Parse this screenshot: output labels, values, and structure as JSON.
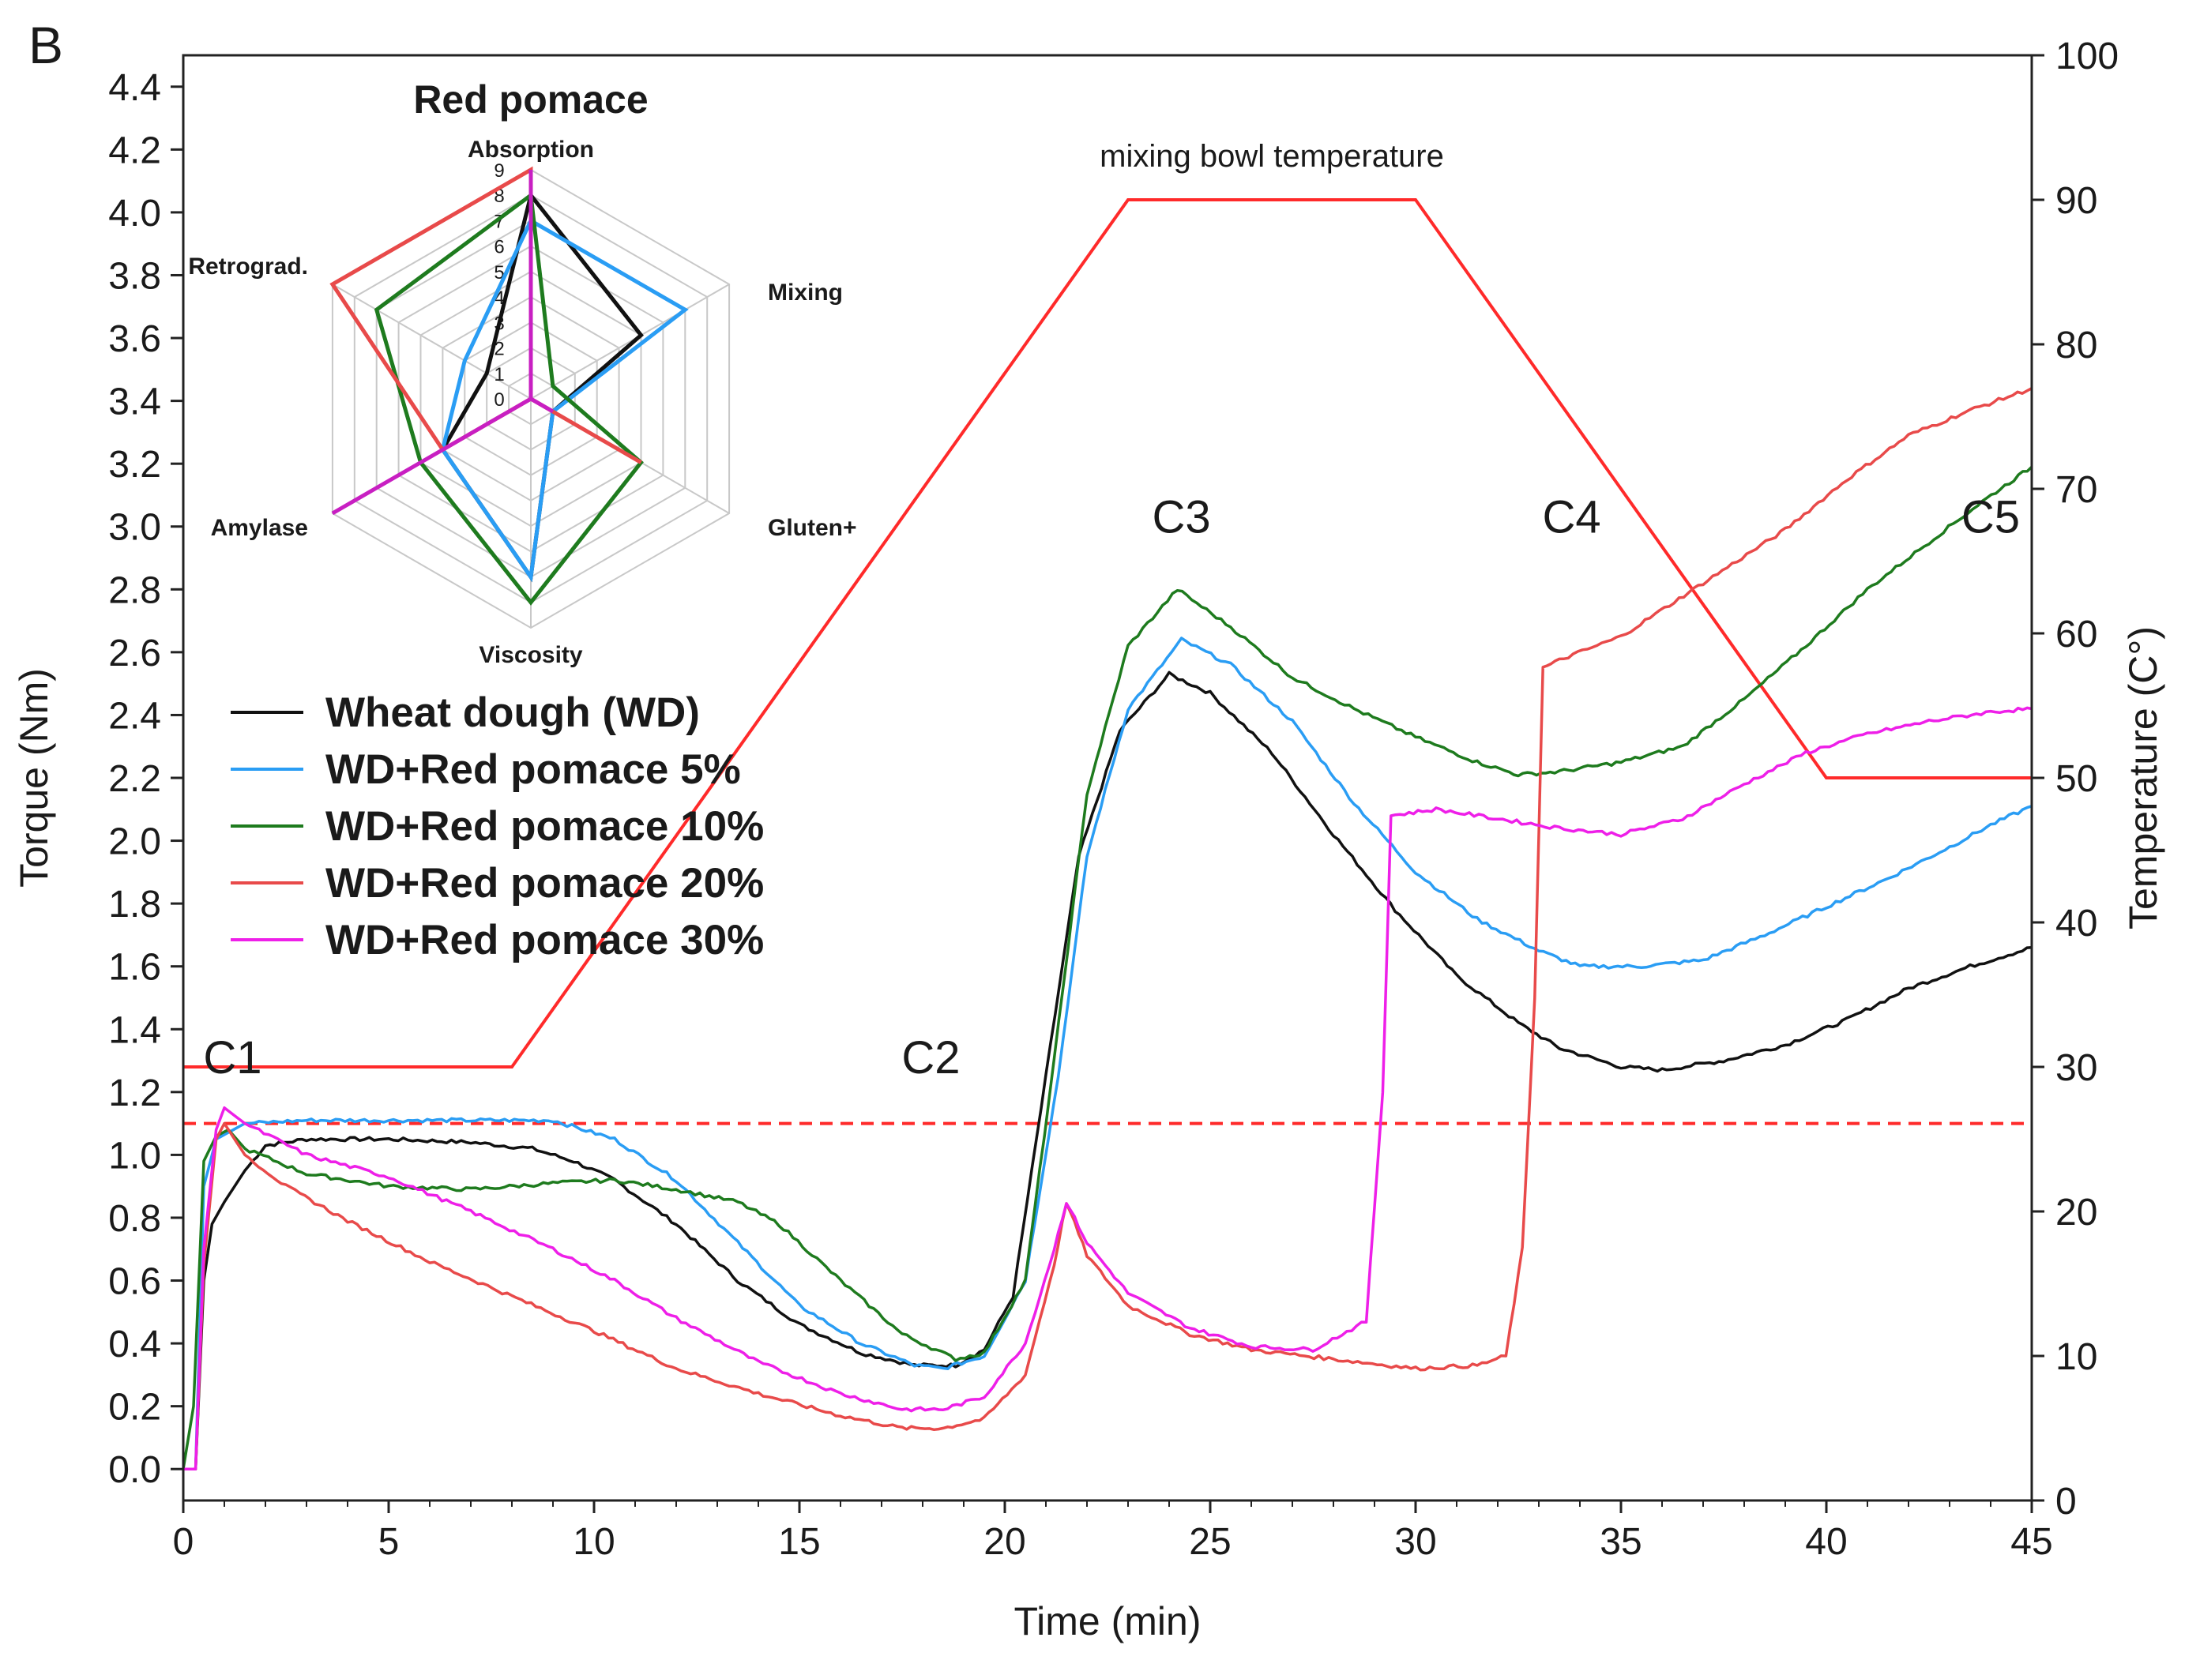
{
  "panel_label": "B",
  "chart_data": [
    {
      "type": "line",
      "xlabel": "Time (min)",
      "ylabel": "Torque (Nm)",
      "y2label": "Temperature (C°)",
      "xlim": [
        0,
        45
      ],
      "ylim": [
        -0.1,
        4.5
      ],
      "y2lim": [
        0,
        100
      ],
      "x_ticks": [
        "0",
        "5",
        "10",
        "15",
        "20",
        "25",
        "30",
        "35",
        "40",
        "45"
      ],
      "y_ticks": [
        "0.0",
        "0.2",
        "0.4",
        "0.6",
        "0.8",
        "1.0",
        "1.2",
        "1.4",
        "1.6",
        "1.8",
        "2.0",
        "2.2",
        "2.4",
        "2.6",
        "2.8",
        "3.0",
        "3.2",
        "3.4",
        "3.6",
        "3.8",
        "4.0",
        "4.2",
        "4.4"
      ],
      "y2_ticks": [
        "0",
        "10",
        "20",
        "30",
        "40",
        "50",
        "60",
        "70",
        "80",
        "90",
        "100"
      ],
      "grid": false,
      "legend_position": "left-middle",
      "annotations": [
        {
          "text": "C1",
          "x": 1.2,
          "y": 1.26
        },
        {
          "text": "C2",
          "x": 18.2,
          "y": 1.26
        },
        {
          "text": "C3",
          "x": 24.3,
          "y": 2.98
        },
        {
          "text": "C4",
          "x": 33.8,
          "y": 2.98
        },
        {
          "text": "C5",
          "x": 44.0,
          "y": 2.98
        }
      ],
      "temperature": {
        "label": "mixing bowl temperature",
        "color": "#ff2a2a",
        "points": [
          [
            0,
            30
          ],
          [
            8,
            30
          ],
          [
            23,
            90
          ],
          [
            30,
            90
          ],
          [
            40,
            50
          ],
          [
            45,
            50
          ]
        ]
      },
      "reference_line": {
        "y": 1.1,
        "color": "#ff2a2a",
        "style": "dashed"
      },
      "series": [
        {
          "name": "Wheat dough (WD)",
          "color": "#111111",
          "points": [
            [
              0,
              0.0
            ],
            [
              0.3,
              0.0
            ],
            [
              0.5,
              0.6
            ],
            [
              0.7,
              0.78
            ],
            [
              1.0,
              0.85
            ],
            [
              1.5,
              0.95
            ],
            [
              2,
              1.03
            ],
            [
              3,
              1.05
            ],
            [
              5,
              1.05
            ],
            [
              7,
              1.04
            ],
            [
              8.5,
              1.02
            ],
            [
              9.5,
              0.98
            ],
            [
              10.5,
              0.92
            ],
            [
              12,
              0.78
            ],
            [
              13.5,
              0.6
            ],
            [
              15,
              0.46
            ],
            [
              16.5,
              0.37
            ],
            [
              17.8,
              0.33
            ],
            [
              18.8,
              0.33
            ],
            [
              19.5,
              0.38
            ],
            [
              20.2,
              0.55
            ],
            [
              21,
              1.25
            ],
            [
              21.8,
              1.95
            ],
            [
              22.8,
              2.35
            ],
            [
              24,
              2.53
            ],
            [
              25,
              2.47
            ],
            [
              26.5,
              2.28
            ],
            [
              28,
              2.02
            ],
            [
              29.5,
              1.78
            ],
            [
              31,
              1.57
            ],
            [
              32.5,
              1.42
            ],
            [
              33.5,
              1.34
            ],
            [
              35,
              1.28
            ],
            [
              36,
              1.27
            ],
            [
              37.5,
              1.3
            ],
            [
              39,
              1.35
            ],
            [
              40.5,
              1.43
            ],
            [
              42,
              1.53
            ],
            [
              43.5,
              1.6
            ],
            [
              45,
              1.66
            ]
          ]
        },
        {
          "name": "WD+Red pomace 5%",
          "color": "#2a9df4",
          "points": [
            [
              0,
              0.0
            ],
            [
              0.3,
              0.0
            ],
            [
              0.5,
              0.9
            ],
            [
              0.8,
              1.05
            ],
            [
              1.5,
              1.1
            ],
            [
              3,
              1.11
            ],
            [
              5,
              1.11
            ],
            [
              7,
              1.11
            ],
            [
              9,
              1.11
            ],
            [
              10.5,
              1.05
            ],
            [
              12,
              0.92
            ],
            [
              13.5,
              0.72
            ],
            [
              15,
              0.52
            ],
            [
              16.5,
              0.4
            ],
            [
              17.8,
              0.33
            ],
            [
              18.5,
              0.32
            ],
            [
              19.5,
              0.36
            ],
            [
              20.5,
              0.6
            ],
            [
              21.3,
              1.25
            ],
            [
              22,
              1.95
            ],
            [
              23,
              2.42
            ],
            [
              24.3,
              2.64
            ],
            [
              25.5,
              2.56
            ],
            [
              27,
              2.38
            ],
            [
              28.5,
              2.12
            ],
            [
              30,
              1.9
            ],
            [
              31.5,
              1.75
            ],
            [
              33,
              1.65
            ],
            [
              34,
              1.6
            ],
            [
              35.5,
              1.6
            ],
            [
              37,
              1.62
            ],
            [
              38.5,
              1.7
            ],
            [
              40,
              1.79
            ],
            [
              41.5,
              1.88
            ],
            [
              43,
              1.98
            ],
            [
              44,
              2.05
            ],
            [
              45,
              2.11
            ]
          ]
        },
        {
          "name": "WD+Red pomace 10%",
          "color": "#1e7b1e",
          "points": [
            [
              0,
              0.0
            ],
            [
              0.25,
              0.2
            ],
            [
              0.5,
              0.98
            ],
            [
              0.8,
              1.06
            ],
            [
              1.1,
              1.08
            ],
            [
              1.5,
              1.02
            ],
            [
              3,
              0.94
            ],
            [
              5,
              0.9
            ],
            [
              7,
              0.89
            ],
            [
              9,
              0.91
            ],
            [
              10.5,
              0.92
            ],
            [
              12,
              0.89
            ],
            [
              13.5,
              0.85
            ],
            [
              14.5,
              0.78
            ],
            [
              16,
              0.6
            ],
            [
              17.5,
              0.43
            ],
            [
              18.8,
              0.35
            ],
            [
              19.5,
              0.37
            ],
            [
              20.5,
              0.6
            ],
            [
              21.2,
              1.3
            ],
            [
              22,
              2.15
            ],
            [
              23,
              2.62
            ],
            [
              24.2,
              2.8
            ],
            [
              25.5,
              2.68
            ],
            [
              27,
              2.52
            ],
            [
              28.5,
              2.42
            ],
            [
              30,
              2.33
            ],
            [
              31.5,
              2.25
            ],
            [
              32.5,
              2.21
            ],
            [
              33.5,
              2.22
            ],
            [
              35,
              2.25
            ],
            [
              36.5,
              2.3
            ],
            [
              38,
              2.45
            ],
            [
              39.5,
              2.62
            ],
            [
              41,
              2.8
            ],
            [
              42.5,
              2.95
            ],
            [
              43.8,
              3.08
            ],
            [
              45,
              3.19
            ]
          ]
        },
        {
          "name": "WD+Red pomace 20%",
          "color": "#e84a4a",
          "points": [
            [
              0,
              0.0
            ],
            [
              0.3,
              0.0
            ],
            [
              0.5,
              0.65
            ],
            [
              0.8,
              1.05
            ],
            [
              1.0,
              1.1
            ],
            [
              1.5,
              1.0
            ],
            [
              2.5,
              0.9
            ],
            [
              4,
              0.79
            ],
            [
              6,
              0.66
            ],
            [
              8,
              0.55
            ],
            [
              10,
              0.44
            ],
            [
              12,
              0.32
            ],
            [
              14,
              0.24
            ],
            [
              16,
              0.17
            ],
            [
              17.5,
              0.13
            ],
            [
              18.5,
              0.13
            ],
            [
              19.5,
              0.16
            ],
            [
              20.5,
              0.3
            ],
            [
              21.2,
              0.65
            ],
            [
              21.5,
              0.85
            ],
            [
              22,
              0.68
            ],
            [
              23,
              0.52
            ],
            [
              24.5,
              0.43
            ],
            [
              26,
              0.38
            ],
            [
              28,
              0.35
            ],
            [
              30,
              0.32
            ],
            [
              31.5,
              0.33
            ],
            [
              32.2,
              0.36
            ],
            [
              32.6,
              0.7
            ],
            [
              32.9,
              1.5
            ],
            [
              33.1,
              2.55
            ],
            [
              33.6,
              2.58
            ],
            [
              35,
              2.65
            ],
            [
              37,
              2.82
            ],
            [
              39,
              2.99
            ],
            [
              40.5,
              3.15
            ],
            [
              42,
              3.29
            ],
            [
              43.5,
              3.37
            ],
            [
              45,
              3.44
            ]
          ]
        },
        {
          "name": "WD+Red pomace 30%",
          "color": "#ee1fe8",
          "points": [
            [
              0,
              0.0
            ],
            [
              0.3,
              0.0
            ],
            [
              0.5,
              0.7
            ],
            [
              0.8,
              1.08
            ],
            [
              1.0,
              1.15
            ],
            [
              1.5,
              1.1
            ],
            [
              3,
              1.0
            ],
            [
              5,
              0.93
            ],
            [
              7,
              0.82
            ],
            [
              9,
              0.7
            ],
            [
              10.5,
              0.6
            ],
            [
              12,
              0.48
            ],
            [
              14,
              0.34
            ],
            [
              16,
              0.24
            ],
            [
              17.5,
              0.19
            ],
            [
              18.5,
              0.19
            ],
            [
              19.5,
              0.23
            ],
            [
              20.5,
              0.4
            ],
            [
              21.2,
              0.7
            ],
            [
              21.5,
              0.85
            ],
            [
              22,
              0.72
            ],
            [
              23,
              0.56
            ],
            [
              24.5,
              0.45
            ],
            [
              26,
              0.39
            ],
            [
              27.5,
              0.38
            ],
            [
              28.8,
              0.47
            ],
            [
              29.2,
              1.2
            ],
            [
              29.4,
              2.08
            ],
            [
              30.5,
              2.1
            ],
            [
              32,
              2.07
            ],
            [
              33.5,
              2.04
            ],
            [
              35,
              2.02
            ],
            [
              36.5,
              2.07
            ],
            [
              38,
              2.18
            ],
            [
              39.5,
              2.28
            ],
            [
              41,
              2.34
            ],
            [
              42.5,
              2.38
            ],
            [
              44,
              2.41
            ],
            [
              45,
              2.42
            ]
          ]
        }
      ]
    },
    {
      "type": "radar",
      "title": "Red pomace",
      "axes": [
        "Absorption",
        "Mixing",
        "Gluten+",
        "Viscosity",
        "Amylase",
        "Retrograd."
      ],
      "range": [
        0,
        9
      ],
      "ticks": [
        "0",
        "1",
        "2",
        "3",
        "4",
        "5",
        "6",
        "7",
        "8",
        "9"
      ],
      "series": [
        {
          "name": "Wheat dough (WD)",
          "color": "#111111",
          "values": [
            8,
            5,
            1,
            7,
            4,
            2
          ]
        },
        {
          "name": "WD+Red pomace 5%",
          "color": "#2a9df4",
          "values": [
            7,
            7,
            1,
            7,
            4,
            3
          ]
        },
        {
          "name": "WD+Red pomace 10%",
          "color": "#1e7b1e",
          "values": [
            8,
            1,
            5,
            8,
            5,
            7
          ]
        },
        {
          "name": "WD+Red pomace 20%",
          "color": "#e84a4a",
          "values": [
            9,
            0,
            5,
            0,
            4,
            9
          ]
        },
        {
          "name": "WD+Red pomace 30%",
          "color": "#c81fc2",
          "values": [
            9,
            0,
            1,
            0,
            9,
            0
          ]
        }
      ]
    }
  ]
}
